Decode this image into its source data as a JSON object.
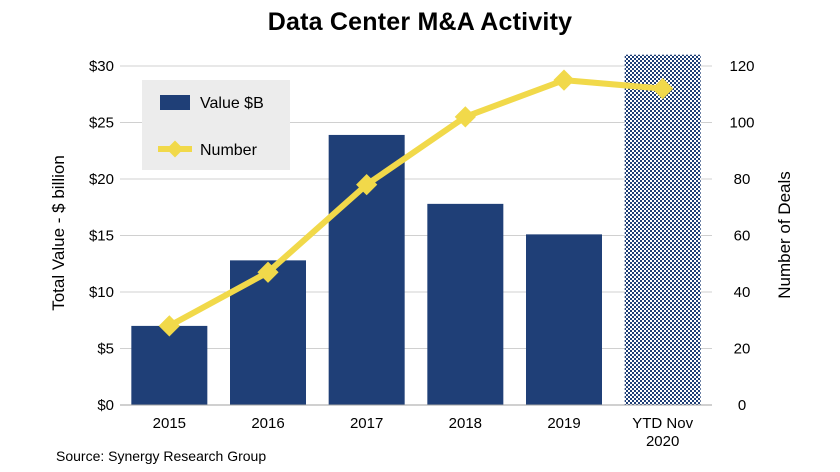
{
  "title": "Data Center M&A Activity",
  "source": "Source: Synergy Research Group",
  "colors": {
    "bar": "#1f3f77",
    "line": "#f1d94a",
    "grid": "#d0d0d0",
    "legend_bg": "#ececec"
  },
  "chart_data": {
    "type": "bar",
    "title": "Data Center M&A Activity",
    "categories": [
      [
        "2015"
      ],
      [
        "2016"
      ],
      [
        "2017"
      ],
      [
        "2018"
      ],
      [
        "2019"
      ],
      [
        "YTD Nov",
        "2020"
      ]
    ],
    "series": [
      {
        "name": "Value $B",
        "type": "bar",
        "axis": "left",
        "values": [
          7.0,
          12.8,
          23.9,
          17.8,
          15.1,
          31.0
        ],
        "pattern": [
          false,
          false,
          false,
          false,
          false,
          true
        ]
      },
      {
        "name": "Number",
        "type": "line",
        "axis": "right",
        "values": [
          28,
          47,
          78,
          102,
          115,
          112
        ]
      }
    ],
    "y_left": {
      "label": "Total Value - $ billion",
      "ylim": [
        0,
        30
      ],
      "ticks": [
        0,
        5,
        10,
        15,
        20,
        25,
        30
      ],
      "tick_labels": [
        "$0",
        "$5",
        "$10",
        "$15",
        "$20",
        "$25",
        "$30"
      ]
    },
    "y_right": {
      "label": "Number of Deals",
      "ylim": [
        0,
        120
      ],
      "ticks": [
        0,
        20,
        40,
        60,
        80,
        100,
        120
      ],
      "tick_labels": [
        "0",
        "20",
        "40",
        "60",
        "80",
        "100",
        "120"
      ]
    },
    "grid": true,
    "legend": {
      "position": "top-left",
      "entries": [
        "Value $B",
        "Number"
      ]
    }
  }
}
